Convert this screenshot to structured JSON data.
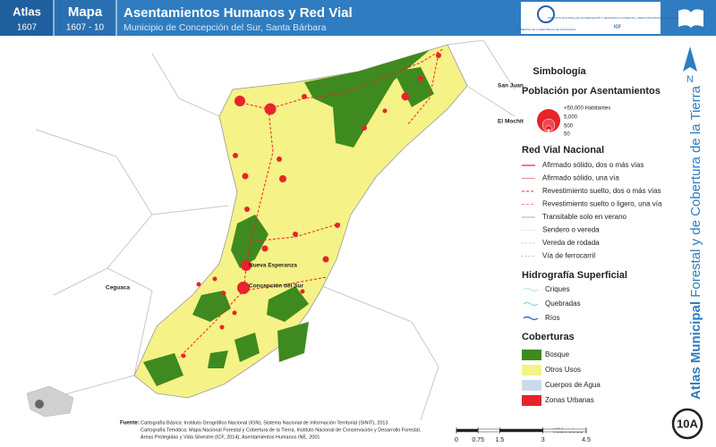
{
  "header": {
    "atlas_label": "Atlas",
    "atlas_code": "1607",
    "map_label": "Mapa",
    "map_code": "1607 - 10",
    "title": "Asentamientos Humanos y Red Vial",
    "subtitle": "Municipio de Concepción del Sur, Santa Bárbara",
    "logo_left": "GOBIERNO DE LA REPÚBLICA DE HONDURAS",
    "logo_right": "INSTITUTO NACIONAL DE CONSERVACIÓN Y DESARROLLO FORESTAL, ÁREAS PROTEGIDAS Y VIDA SILVESTRE",
    "logo_right_code": "ICF"
  },
  "map_labels": [
    "San Juan",
    "El Mochit",
    "Ceguaca",
    "Nueva Esperanza",
    "Concepción del Sur"
  ],
  "legend": {
    "title": "Simbología",
    "population": {
      "title": "Población por Asentamientos",
      "items": [
        "+50,000 Habitantes",
        "5,000",
        "500",
        "50"
      ]
    },
    "roads": {
      "title": "Red Vial Nacional",
      "items": [
        "Afirmado sólido, dos o más vías",
        "Afirmado sólido, una vía",
        "Revestimiento suelto, dos o más vías",
        "Revestimiento suelto o ligero, una vía",
        "Transitable solo en verano",
        "Sendero o vereda",
        "Vereda de rodada",
        "Vía de ferrocarril"
      ]
    },
    "hydrography": {
      "title": "Hidrografía Superficial",
      "items": [
        "Criques",
        "Quebradas",
        "Ríos"
      ]
    },
    "coverage": {
      "title": "Coberturas",
      "items": [
        "Bosque",
        "Otros Usos",
        "Cuerpos de Agua",
        "Zonas Urbanas"
      ]
    }
  },
  "sidebar": {
    "title_bold": "Atlas Municipal",
    "title_rest": "Forestal y de Cobertura de la Tierra",
    "north": "N",
    "sheet": "10A"
  },
  "scale": {
    "unit": "Kilómetros",
    "ticks": [
      0,
      0.75,
      1.5,
      3,
      4.5
    ]
  },
  "source": {
    "label": "Fuente:",
    "lines": [
      "Cartografía Básica: Instituto Geográfico Nacional (IGN), Sistema Nacional de Información Territorial (SINIT), 2013",
      "Cartografía Temática: Mapa Nacional Forestal y Cobertura de la Tierra, Instituto Nacional de Conservación y Desarrollo Forestal,",
      "Áreas Protegidas y Vida Silvestre (ICF, 2014); Asentamientos Humanos INE, 2001"
    ]
  }
}
